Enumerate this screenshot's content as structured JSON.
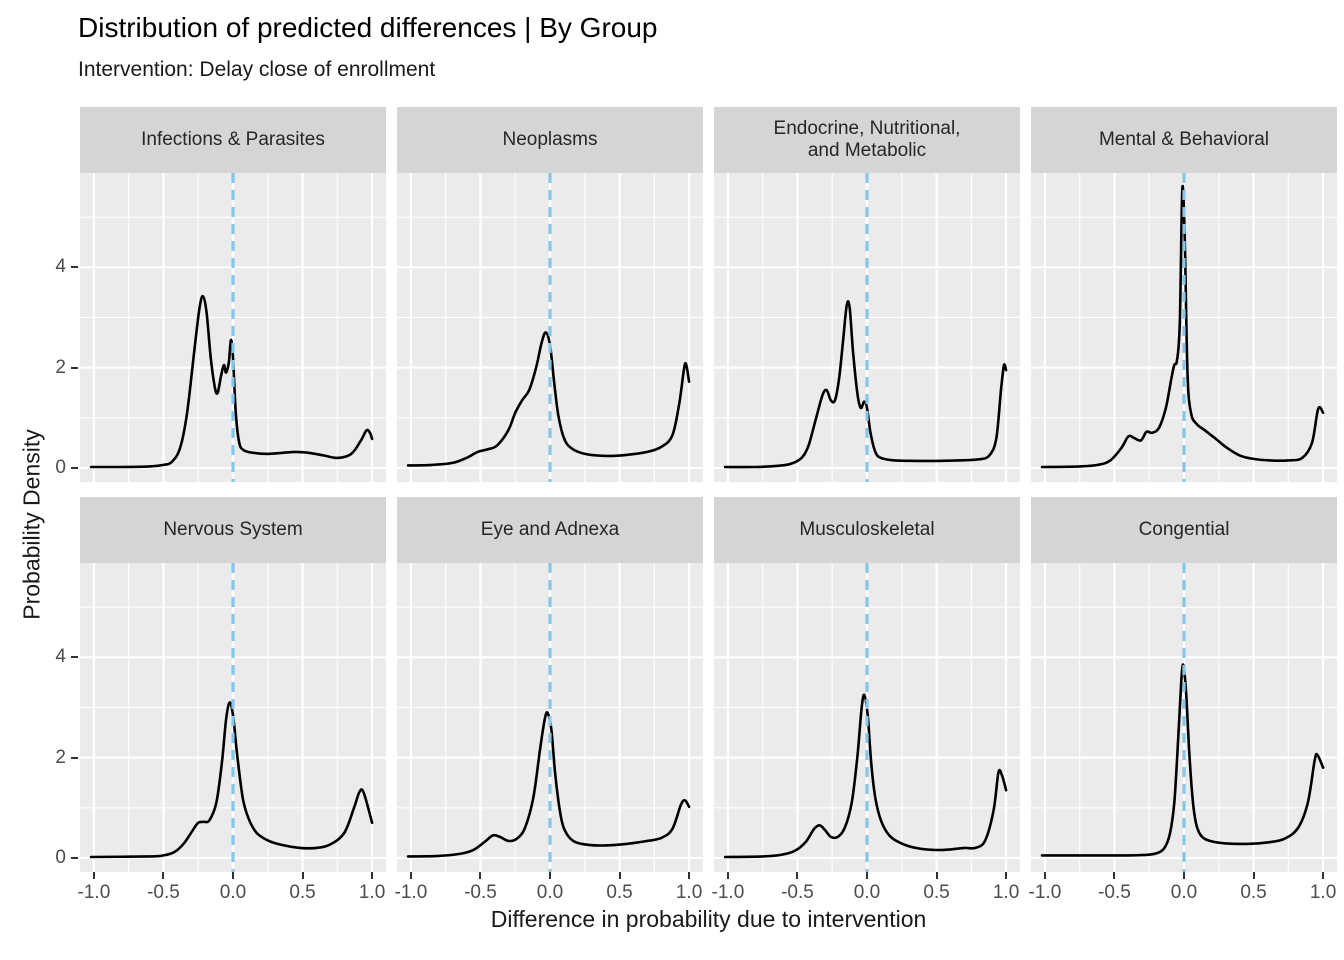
{
  "header": {
    "title": "Distribution of predicted differences | By Group",
    "subtitle": "Intervention: Delay close of enrollment"
  },
  "axes": {
    "x_title": "Difference in probability due to intervention",
    "y_title": "Probability Density",
    "x_tick_labels": [
      "-1.0",
      "-0.5",
      "0.0",
      "0.5",
      "1.0"
    ],
    "y_tick_labels": [
      "0",
      "2",
      "4"
    ]
  },
  "colors": {
    "background": "#FFFFFF",
    "panel_bg": "#EBEBEB",
    "strip_bg": "#D5D5D5",
    "gridline": "#FFFFFF",
    "curve": "#000000",
    "ref_line": "#85C7E8",
    "axis_text": "#4D4D4D",
    "tick_mark": "#333333",
    "text": "#1A1A1A"
  },
  "chart_data": {
    "type": "line",
    "subtype": "faceted-density",
    "title": "Distribution of predicted differences | By Group",
    "subtitle": "Intervention: Delay close of enrollment",
    "xlabel": "Difference in probability due to intervention",
    "ylabel": "Probability Density",
    "x_range": [
      -1.1,
      1.1
    ],
    "y_range": [
      -0.28,
      5.88
    ],
    "x_major_ticks": [
      -1.0,
      -0.5,
      0.0,
      0.5,
      1.0
    ],
    "x_minor_ticks": [
      -0.75,
      -0.25,
      0.25,
      0.75
    ],
    "y_major_ticks": [
      0,
      2,
      4
    ],
    "y_minor_ticks": [
      1,
      3,
      5
    ],
    "grid": true,
    "legend": false,
    "reference_vline_x": 0.0,
    "facet_layout": {
      "rows": 2,
      "cols": 4
    },
    "facets": [
      {
        "label": "Infections & Parasites",
        "points": [
          [
            -1.02,
            0.02
          ],
          [
            -0.8,
            0.02
          ],
          [
            -0.6,
            0.03
          ],
          [
            -0.5,
            0.06
          ],
          [
            -0.44,
            0.12
          ],
          [
            -0.38,
            0.4
          ],
          [
            -0.33,
            1.1
          ],
          [
            -0.28,
            2.3
          ],
          [
            -0.24,
            3.2
          ],
          [
            -0.215,
            3.42
          ],
          [
            -0.19,
            3.1
          ],
          [
            -0.16,
            2.2
          ],
          [
            -0.13,
            1.6
          ],
          [
            -0.11,
            1.5
          ],
          [
            -0.085,
            1.85
          ],
          [
            -0.065,
            2.05
          ],
          [
            -0.05,
            1.9
          ],
          [
            -0.03,
            2.1
          ],
          [
            -0.015,
            2.55
          ],
          [
            0.0,
            2.2
          ],
          [
            0.02,
            1.1
          ],
          [
            0.045,
            0.5
          ],
          [
            0.08,
            0.35
          ],
          [
            0.15,
            0.3
          ],
          [
            0.25,
            0.28
          ],
          [
            0.35,
            0.3
          ],
          [
            0.45,
            0.32
          ],
          [
            0.55,
            0.3
          ],
          [
            0.65,
            0.25
          ],
          [
            0.75,
            0.2
          ],
          [
            0.85,
            0.28
          ],
          [
            0.92,
            0.55
          ],
          [
            0.96,
            0.75
          ],
          [
            0.985,
            0.7
          ],
          [
            1.0,
            0.58
          ]
        ]
      },
      {
        "label": "Neoplasms",
        "points": [
          [
            -1.02,
            0.05
          ],
          [
            -0.85,
            0.06
          ],
          [
            -0.7,
            0.1
          ],
          [
            -0.6,
            0.2
          ],
          [
            -0.52,
            0.32
          ],
          [
            -0.45,
            0.37
          ],
          [
            -0.38,
            0.45
          ],
          [
            -0.3,
            0.75
          ],
          [
            -0.25,
            1.1
          ],
          [
            -0.2,
            1.35
          ],
          [
            -0.15,
            1.55
          ],
          [
            -0.1,
            2.0
          ],
          [
            -0.06,
            2.5
          ],
          [
            -0.03,
            2.7
          ],
          [
            0.0,
            2.45
          ],
          [
            0.03,
            1.7
          ],
          [
            0.06,
            1.05
          ],
          [
            0.1,
            0.6
          ],
          [
            0.15,
            0.4
          ],
          [
            0.25,
            0.28
          ],
          [
            0.4,
            0.24
          ],
          [
            0.55,
            0.26
          ],
          [
            0.7,
            0.32
          ],
          [
            0.8,
            0.42
          ],
          [
            0.88,
            0.65
          ],
          [
            0.93,
            1.3
          ],
          [
            0.965,
            2.0
          ],
          [
            0.98,
            2.05
          ],
          [
            1.0,
            1.72
          ]
        ]
      },
      {
        "label": "Endocrine, Nutritional,\nand Metabolic",
        "points": [
          [
            -1.02,
            0.02
          ],
          [
            -0.8,
            0.02
          ],
          [
            -0.65,
            0.04
          ],
          [
            -0.55,
            0.08
          ],
          [
            -0.47,
            0.2
          ],
          [
            -0.42,
            0.45
          ],
          [
            -0.37,
            0.95
          ],
          [
            -0.32,
            1.45
          ],
          [
            -0.29,
            1.55
          ],
          [
            -0.26,
            1.35
          ],
          [
            -0.23,
            1.35
          ],
          [
            -0.2,
            1.8
          ],
          [
            -0.17,
            2.6
          ],
          [
            -0.145,
            3.25
          ],
          [
            -0.125,
            3.2
          ],
          [
            -0.1,
            2.3
          ],
          [
            -0.07,
            1.5
          ],
          [
            -0.045,
            1.2
          ],
          [
            -0.02,
            1.32
          ],
          [
            0.0,
            1.2
          ],
          [
            0.025,
            0.7
          ],
          [
            0.06,
            0.32
          ],
          [
            0.1,
            0.2
          ],
          [
            0.2,
            0.15
          ],
          [
            0.35,
            0.14
          ],
          [
            0.5,
            0.14
          ],
          [
            0.65,
            0.15
          ],
          [
            0.8,
            0.17
          ],
          [
            0.88,
            0.25
          ],
          [
            0.93,
            0.6
          ],
          [
            0.965,
            1.6
          ],
          [
            0.985,
            2.05
          ],
          [
            1.0,
            1.95
          ]
        ]
      },
      {
        "label": "Mental & Behavioral",
        "points": [
          [
            -1.02,
            0.02
          ],
          [
            -0.75,
            0.03
          ],
          [
            -0.62,
            0.06
          ],
          [
            -0.53,
            0.15
          ],
          [
            -0.45,
            0.4
          ],
          [
            -0.4,
            0.63
          ],
          [
            -0.36,
            0.6
          ],
          [
            -0.31,
            0.55
          ],
          [
            -0.27,
            0.72
          ],
          [
            -0.23,
            0.7
          ],
          [
            -0.18,
            0.8
          ],
          [
            -0.13,
            1.2
          ],
          [
            -0.09,
            1.8
          ],
          [
            -0.07,
            2.05
          ],
          [
            -0.05,
            2.15
          ],
          [
            -0.03,
            2.9
          ],
          [
            -0.012,
            5.55
          ],
          [
            0.005,
            4.6
          ],
          [
            0.025,
            1.9
          ],
          [
            0.05,
            1.1
          ],
          [
            0.09,
            0.88
          ],
          [
            0.15,
            0.75
          ],
          [
            0.22,
            0.6
          ],
          [
            0.3,
            0.42
          ],
          [
            0.4,
            0.25
          ],
          [
            0.5,
            0.18
          ],
          [
            0.62,
            0.15
          ],
          [
            0.75,
            0.15
          ],
          [
            0.85,
            0.2
          ],
          [
            0.92,
            0.5
          ],
          [
            0.965,
            1.18
          ],
          [
            1.0,
            1.1
          ]
        ]
      },
      {
        "label": "Nervous System",
        "points": [
          [
            -1.02,
            0.02
          ],
          [
            -0.6,
            0.03
          ],
          [
            -0.5,
            0.05
          ],
          [
            -0.42,
            0.12
          ],
          [
            -0.35,
            0.3
          ],
          [
            -0.29,
            0.55
          ],
          [
            -0.25,
            0.7
          ],
          [
            -0.21,
            0.72
          ],
          [
            -0.17,
            0.75
          ],
          [
            -0.12,
            1.1
          ],
          [
            -0.08,
            1.9
          ],
          [
            -0.05,
            2.75
          ],
          [
            -0.025,
            3.1
          ],
          [
            0.0,
            2.85
          ],
          [
            0.03,
            2.05
          ],
          [
            0.07,
            1.2
          ],
          [
            0.11,
            0.8
          ],
          [
            0.17,
            0.5
          ],
          [
            0.25,
            0.35
          ],
          [
            0.35,
            0.26
          ],
          [
            0.48,
            0.2
          ],
          [
            0.6,
            0.2
          ],
          [
            0.7,
            0.27
          ],
          [
            0.8,
            0.5
          ],
          [
            0.87,
            1.0
          ],
          [
            0.91,
            1.32
          ],
          [
            0.94,
            1.3
          ],
          [
            1.0,
            0.7
          ]
        ]
      },
      {
        "label": "Eye and Adnexa",
        "points": [
          [
            -1.02,
            0.03
          ],
          [
            -0.8,
            0.04
          ],
          [
            -0.65,
            0.08
          ],
          [
            -0.55,
            0.16
          ],
          [
            -0.47,
            0.32
          ],
          [
            -0.41,
            0.45
          ],
          [
            -0.36,
            0.42
          ],
          [
            -0.3,
            0.34
          ],
          [
            -0.24,
            0.38
          ],
          [
            -0.18,
            0.6
          ],
          [
            -0.12,
            1.2
          ],
          [
            -0.07,
            2.2
          ],
          [
            -0.035,
            2.8
          ],
          [
            -0.015,
            2.88
          ],
          [
            0.01,
            2.55
          ],
          [
            0.04,
            1.6
          ],
          [
            0.08,
            0.8
          ],
          [
            0.12,
            0.48
          ],
          [
            0.18,
            0.32
          ],
          [
            0.28,
            0.26
          ],
          [
            0.4,
            0.25
          ],
          [
            0.55,
            0.28
          ],
          [
            0.68,
            0.33
          ],
          [
            0.8,
            0.4
          ],
          [
            0.88,
            0.58
          ],
          [
            0.94,
            1.05
          ],
          [
            0.97,
            1.15
          ],
          [
            1.0,
            1.02
          ]
        ]
      },
      {
        "label": "Musculoskeletal",
        "points": [
          [
            -1.02,
            0.02
          ],
          [
            -0.75,
            0.03
          ],
          [
            -0.62,
            0.06
          ],
          [
            -0.52,
            0.14
          ],
          [
            -0.44,
            0.32
          ],
          [
            -0.38,
            0.58
          ],
          [
            -0.34,
            0.65
          ],
          [
            -0.3,
            0.55
          ],
          [
            -0.26,
            0.42
          ],
          [
            -0.21,
            0.42
          ],
          [
            -0.16,
            0.6
          ],
          [
            -0.11,
            1.1
          ],
          [
            -0.07,
            2.0
          ],
          [
            -0.04,
            2.95
          ],
          [
            -0.02,
            3.25
          ],
          [
            0.005,
            2.85
          ],
          [
            0.03,
            1.9
          ],
          [
            0.06,
            1.2
          ],
          [
            0.1,
            0.75
          ],
          [
            0.16,
            0.45
          ],
          [
            0.24,
            0.3
          ],
          [
            0.35,
            0.2
          ],
          [
            0.48,
            0.16
          ],
          [
            0.6,
            0.17
          ],
          [
            0.7,
            0.2
          ],
          [
            0.78,
            0.2
          ],
          [
            0.85,
            0.35
          ],
          [
            0.91,
            0.95
          ],
          [
            0.945,
            1.7
          ],
          [
            0.97,
            1.65
          ],
          [
            1.0,
            1.35
          ]
        ]
      },
      {
        "label": "Congential",
        "points": [
          [
            -1.02,
            0.05
          ],
          [
            -0.8,
            0.05
          ],
          [
            -0.6,
            0.05
          ],
          [
            -0.4,
            0.05
          ],
          [
            -0.28,
            0.06
          ],
          [
            -0.2,
            0.09
          ],
          [
            -0.14,
            0.2
          ],
          [
            -0.1,
            0.5
          ],
          [
            -0.07,
            1.1
          ],
          [
            -0.045,
            2.2
          ],
          [
            -0.02,
            3.5
          ],
          [
            -0.005,
            3.85
          ],
          [
            0.015,
            3.3
          ],
          [
            0.04,
            2.0
          ],
          [
            0.065,
            1.1
          ],
          [
            0.09,
            0.65
          ],
          [
            0.13,
            0.42
          ],
          [
            0.2,
            0.33
          ],
          [
            0.3,
            0.29
          ],
          [
            0.45,
            0.28
          ],
          [
            0.6,
            0.31
          ],
          [
            0.72,
            0.38
          ],
          [
            0.82,
            0.6
          ],
          [
            0.89,
            1.1
          ],
          [
            0.94,
            1.95
          ],
          [
            0.96,
            2.05
          ],
          [
            1.0,
            1.8
          ]
        ]
      }
    ]
  }
}
